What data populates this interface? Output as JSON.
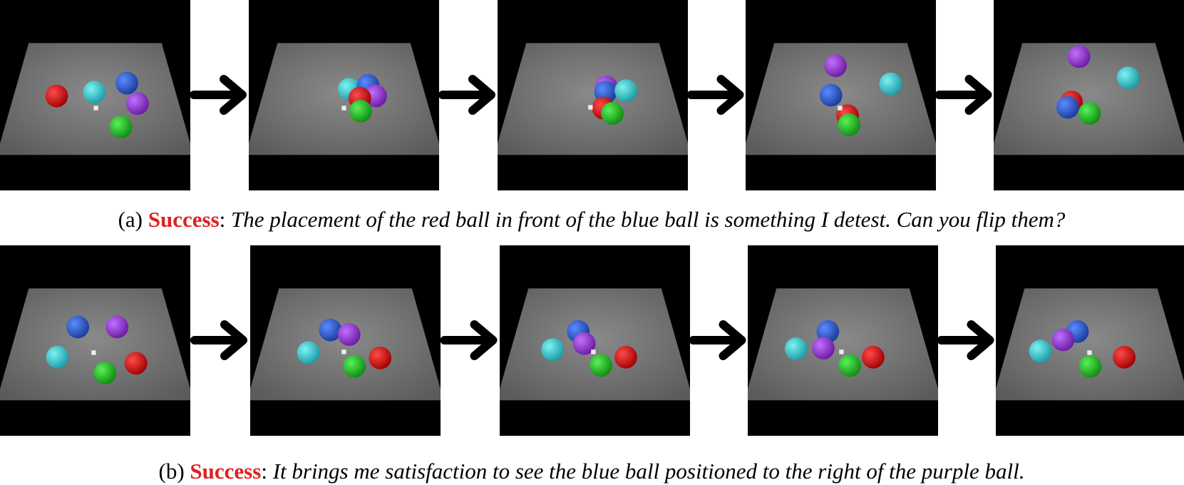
{
  "captions": [
    {
      "label": "(a)",
      "status": "Success",
      "separator": ":",
      "text": "The placement of the red ball in front of the blue ball is something I detest. Can you flip them?"
    },
    {
      "label": "(b)",
      "status": "Success",
      "separator": ":",
      "text": "It brings me satisfaction to see the blue ball positioned to the right of the purple ball."
    }
  ]
}
